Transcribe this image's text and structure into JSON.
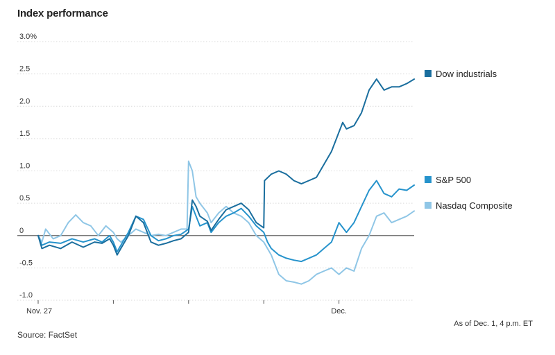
{
  "header": {
    "title": "Index performance"
  },
  "footer": {
    "source": "Source: FactSet",
    "as_of": "As of Dec. 1, 4 p.m. ET"
  },
  "colors": {
    "dow": "#1a6e9e",
    "sp": "#2693cc",
    "nasdaq": "#8fc6e6",
    "grid": "#d9d9d9",
    "zero": "#666666",
    "text": "#333333"
  },
  "chart_data": {
    "type": "line",
    "title": "Index performance",
    "ylim": [
      -1.0,
      3.0
    ],
    "yticks": [
      -1.0,
      -0.5,
      0,
      0.5,
      1.0,
      1.5,
      2.0,
      2.5,
      3.0
    ],
    "ytick_labels": [
      "-1.0",
      "-0.5",
      "0",
      "0.5",
      "1.0",
      "1.5",
      "2.0",
      "2.5",
      "3.0%"
    ],
    "xlim": [
      0,
      5
    ],
    "x_labels": [
      {
        "x": 0,
        "label": "Nov. 27"
      },
      {
        "x": 4,
        "label": "Dec."
      }
    ],
    "x_ticks": [
      0,
      1,
      2,
      3,
      4
    ],
    "grid": true,
    "legend": "right",
    "series": [
      {
        "name": "Dow industrials",
        "color_key": "dow",
        "points": [
          [
            0,
            0
          ],
          [
            0.05,
            -0.2
          ],
          [
            0.15,
            -0.15
          ],
          [
            0.3,
            -0.2
          ],
          [
            0.45,
            -0.1
          ],
          [
            0.6,
            -0.18
          ],
          [
            0.75,
            -0.1
          ],
          [
            0.85,
            -0.12
          ],
          [
            0.95,
            -0.05
          ],
          [
            1.0,
            -0.15
          ],
          [
            1.05,
            -0.3
          ],
          [
            1.1,
            -0.2
          ],
          [
            1.2,
            0.0
          ],
          [
            1.3,
            0.3
          ],
          [
            1.4,
            0.2
          ],
          [
            1.5,
            -0.1
          ],
          [
            1.6,
            -0.15
          ],
          [
            1.7,
            -0.12
          ],
          [
            1.8,
            -0.08
          ],
          [
            1.9,
            -0.05
          ],
          [
            2.0,
            0.05
          ],
          [
            2.05,
            0.55
          ],
          [
            2.1,
            0.45
          ],
          [
            2.15,
            0.3
          ],
          [
            2.25,
            0.22
          ],
          [
            2.3,
            0.08
          ],
          [
            2.4,
            0.25
          ],
          [
            2.5,
            0.4
          ],
          [
            2.6,
            0.45
          ],
          [
            2.7,
            0.5
          ],
          [
            2.8,
            0.4
          ],
          [
            2.9,
            0.2
          ],
          [
            3.0,
            0.12
          ],
          [
            3.01,
            0.85
          ],
          [
            3.1,
            0.95
          ],
          [
            3.2,
            1.0
          ],
          [
            3.3,
            0.95
          ],
          [
            3.4,
            0.85
          ],
          [
            3.5,
            0.8
          ],
          [
            3.6,
            0.85
          ],
          [
            3.7,
            0.9
          ],
          [
            3.8,
            1.1
          ],
          [
            3.9,
            1.3
          ],
          [
            4.0,
            1.6
          ],
          [
            4.05,
            1.75
          ],
          [
            4.1,
            1.65
          ],
          [
            4.2,
            1.7
          ],
          [
            4.3,
            1.9
          ],
          [
            4.4,
            2.25
          ],
          [
            4.5,
            2.42
          ],
          [
            4.6,
            2.25
          ],
          [
            4.7,
            2.3
          ],
          [
            4.8,
            2.3
          ],
          [
            4.9,
            2.35
          ],
          [
            5.0,
            2.42
          ]
        ]
      },
      {
        "name": "S&P 500",
        "color_key": "sp",
        "points": [
          [
            0,
            0
          ],
          [
            0.05,
            -0.15
          ],
          [
            0.15,
            -0.1
          ],
          [
            0.3,
            -0.12
          ],
          [
            0.45,
            -0.05
          ],
          [
            0.6,
            -0.1
          ],
          [
            0.75,
            -0.05
          ],
          [
            0.85,
            -0.1
          ],
          [
            0.95,
            0.0
          ],
          [
            1.0,
            -0.1
          ],
          [
            1.05,
            -0.25
          ],
          [
            1.1,
            -0.15
          ],
          [
            1.2,
            0.05
          ],
          [
            1.3,
            0.3
          ],
          [
            1.4,
            0.25
          ],
          [
            1.5,
            0.0
          ],
          [
            1.6,
            -0.08
          ],
          [
            1.7,
            -0.05
          ],
          [
            1.8,
            0.0
          ],
          [
            1.9,
            0.02
          ],
          [
            2.0,
            0.1
          ],
          [
            2.05,
            0.45
          ],
          [
            2.1,
            0.3
          ],
          [
            2.15,
            0.15
          ],
          [
            2.25,
            0.2
          ],
          [
            2.3,
            0.05
          ],
          [
            2.4,
            0.2
          ],
          [
            2.5,
            0.3
          ],
          [
            2.6,
            0.35
          ],
          [
            2.7,
            0.42
          ],
          [
            2.8,
            0.3
          ],
          [
            2.9,
            0.15
          ],
          [
            3.0,
            0.05
          ],
          [
            3.05,
            -0.1
          ],
          [
            3.1,
            -0.2
          ],
          [
            3.2,
            -0.3
          ],
          [
            3.3,
            -0.35
          ],
          [
            3.4,
            -0.38
          ],
          [
            3.5,
            -0.4
          ],
          [
            3.6,
            -0.35
          ],
          [
            3.7,
            -0.3
          ],
          [
            3.8,
            -0.2
          ],
          [
            3.9,
            -0.1
          ],
          [
            4.0,
            0.2
          ],
          [
            4.1,
            0.05
          ],
          [
            4.2,
            0.2
          ],
          [
            4.3,
            0.45
          ],
          [
            4.4,
            0.7
          ],
          [
            4.5,
            0.85
          ],
          [
            4.6,
            0.65
          ],
          [
            4.7,
            0.6
          ],
          [
            4.8,
            0.72
          ],
          [
            4.9,
            0.7
          ],
          [
            5.0,
            0.78
          ]
        ]
      },
      {
        "name": "Nasdaq Composite",
        "color_key": "nasdaq",
        "points": [
          [
            0,
            0
          ],
          [
            0.05,
            -0.1
          ],
          [
            0.1,
            0.1
          ],
          [
            0.2,
            -0.05
          ],
          [
            0.3,
            0.0
          ],
          [
            0.4,
            0.2
          ],
          [
            0.5,
            0.32
          ],
          [
            0.6,
            0.2
          ],
          [
            0.7,
            0.15
          ],
          [
            0.8,
            0.0
          ],
          [
            0.9,
            0.15
          ],
          [
            1.0,
            0.05
          ],
          [
            1.05,
            -0.05
          ],
          [
            1.1,
            -0.1
          ],
          [
            1.2,
            0.0
          ],
          [
            1.3,
            0.1
          ],
          [
            1.4,
            0.05
          ],
          [
            1.5,
            0.0
          ],
          [
            1.6,
            0.02
          ],
          [
            1.7,
            0.0
          ],
          [
            1.8,
            0.05
          ],
          [
            1.9,
            0.1
          ],
          [
            1.98,
            0.1
          ],
          [
            2.0,
            1.15
          ],
          [
            2.05,
            1.0
          ],
          [
            2.1,
            0.6
          ],
          [
            2.15,
            0.5
          ],
          [
            2.25,
            0.35
          ],
          [
            2.3,
            0.2
          ],
          [
            2.4,
            0.35
          ],
          [
            2.5,
            0.45
          ],
          [
            2.6,
            0.35
          ],
          [
            2.7,
            0.3
          ],
          [
            2.8,
            0.2
          ],
          [
            2.9,
            0.0
          ],
          [
            3.0,
            -0.1
          ],
          [
            3.1,
            -0.3
          ],
          [
            3.2,
            -0.6
          ],
          [
            3.3,
            -0.7
          ],
          [
            3.4,
            -0.72
          ],
          [
            3.5,
            -0.75
          ],
          [
            3.6,
            -0.7
          ],
          [
            3.7,
            -0.6
          ],
          [
            3.8,
            -0.55
          ],
          [
            3.9,
            -0.5
          ],
          [
            4.0,
            -0.6
          ],
          [
            4.1,
            -0.5
          ],
          [
            4.2,
            -0.55
          ],
          [
            4.3,
            -0.2
          ],
          [
            4.4,
            0.0
          ],
          [
            4.5,
            0.3
          ],
          [
            4.6,
            0.35
          ],
          [
            4.7,
            0.2
          ],
          [
            4.8,
            0.25
          ],
          [
            4.9,
            0.3
          ],
          [
            5.0,
            0.38
          ]
        ]
      }
    ]
  }
}
